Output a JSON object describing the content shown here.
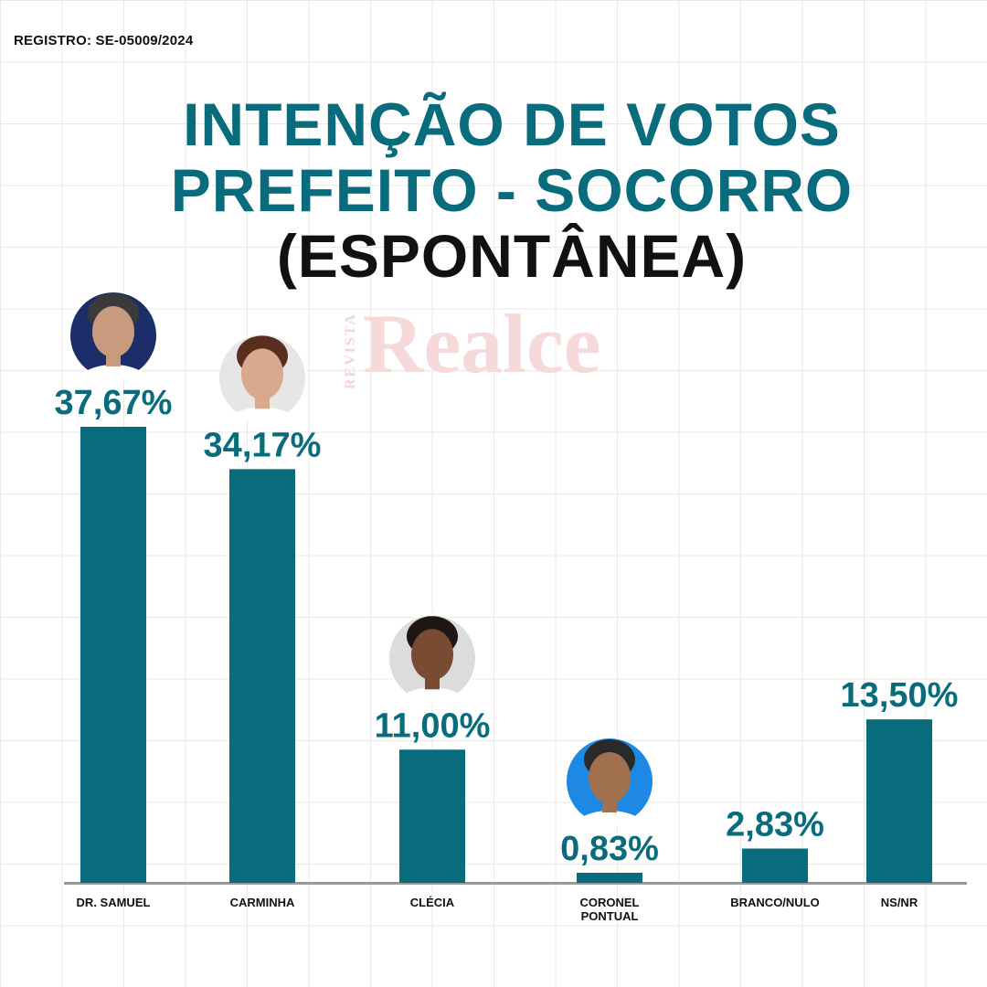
{
  "header": {
    "registro": "REGISTRO: SE-05009/2024",
    "title_line1": "INTENÇÃO DE VOTOS",
    "title_line2": "PREFEITO - SOCORRO",
    "title_line3": "(ESPONTÂNEA)"
  },
  "watermark": {
    "side_text": "REVISTA",
    "name": "Realce"
  },
  "colors": {
    "bar": "#086c7c",
    "title": "#086c7c",
    "axis": "#999999"
  },
  "chart_data": {
    "type": "bar",
    "title": "INTENÇÃO DE VOTOS PREFEITO - SOCORRO (ESPONTÂNEA)",
    "categories": [
      "DR. SAMUEL",
      "CARMINHA",
      "CLÉCIA",
      "CORONEL PONTUAL",
      "BRANCO/NULO",
      "NS/NR"
    ],
    "values": [
      37.67,
      34.17,
      11.0,
      0.83,
      2.83,
      13.5
    ],
    "data_labels": [
      "37,67%",
      "34,17%",
      "11,00%",
      "0,83%",
      "2,83%",
      "13,50%"
    ],
    "candidate_photo": [
      true,
      true,
      true,
      true,
      false,
      false
    ],
    "ylim": [
      0,
      37.67
    ],
    "grid": true,
    "legend": "none"
  }
}
